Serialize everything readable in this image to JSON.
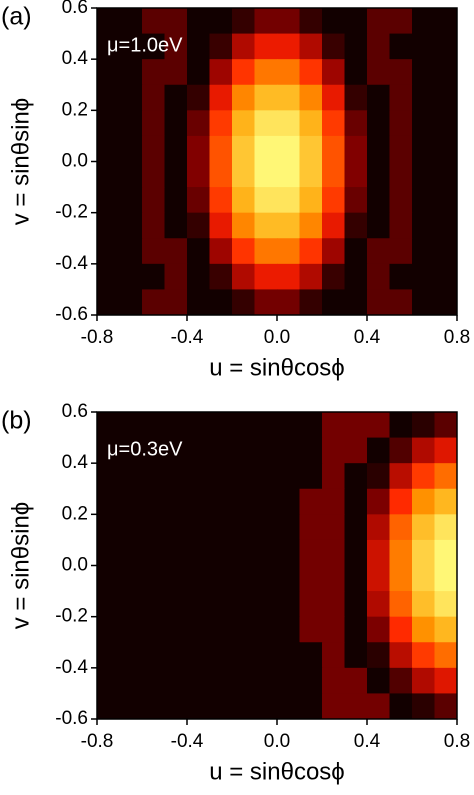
{
  "chart_data": [
    {
      "type": "heatmap",
      "panel_label": "(a)",
      "annotation": "μ=1.0eV",
      "xlabel": "u = sinθcosϕ",
      "ylabel": "v = sinθsinϕ",
      "xlim": [
        -0.8,
        0.8
      ],
      "ylim": [
        -0.6,
        0.6
      ],
      "xticks": [
        -0.8,
        -0.4,
        {
          "value": 0,
          "label": "0.0"
        },
        0.4,
        0.8
      ],
      "yticks": [
        -0.6,
        -0.4,
        -0.2,
        {
          "value": 0,
          "label": "0.0"
        },
        0.2,
        0.4,
        0.6
      ],
      "colormap": [
        "#120000",
        "#8b0000",
        "#ff2000",
        "#ffa000",
        "#ffff80"
      ],
      "x": [
        -0.75,
        -0.65,
        -0.55,
        -0.45,
        -0.35,
        -0.25,
        -0.15,
        -0.05,
        0.05,
        0.15,
        0.25,
        0.35,
        0.45,
        0.55,
        0.65,
        0.75
      ],
      "y": [
        0.55,
        0.45,
        0.35,
        0.25,
        0.15,
        0.05,
        -0.05,
        -0.15,
        -0.25,
        -0.35,
        -0.45,
        -0.55
      ],
      "z": [
        [
          0,
          0,
          0.15,
          0.15,
          0,
          0,
          0.07,
          0.2,
          0.2,
          0.07,
          0,
          0,
          0.15,
          0.15,
          0,
          0
        ],
        [
          0,
          0,
          0,
          0.15,
          0,
          0.08,
          0.33,
          0.46,
          0.46,
          0.33,
          0.08,
          0,
          0.15,
          0,
          0,
          0
        ],
        [
          0,
          0,
          0.15,
          0.15,
          0,
          0.29,
          0.54,
          0.67,
          0.67,
          0.54,
          0.29,
          0,
          0.15,
          0.15,
          0,
          0
        ],
        [
          0,
          0,
          0.15,
          0,
          0.07,
          0.45,
          0.7,
          0.82,
          0.82,
          0.7,
          0.45,
          0.07,
          0,
          0.15,
          0,
          0
        ],
        [
          0,
          0,
          0.15,
          0,
          0.18,
          0.55,
          0.8,
          0.93,
          0.93,
          0.8,
          0.55,
          0.18,
          0,
          0.15,
          0,
          0
        ],
        [
          0,
          0,
          0.15,
          0,
          0.23,
          0.6,
          0.85,
          0.98,
          0.98,
          0.85,
          0.6,
          0.23,
          0,
          0.15,
          0,
          0
        ],
        [
          0,
          0,
          0.15,
          0,
          0.23,
          0.6,
          0.85,
          0.98,
          0.98,
          0.85,
          0.6,
          0.23,
          0,
          0.15,
          0,
          0
        ],
        [
          0,
          0,
          0.15,
          0,
          0.18,
          0.55,
          0.8,
          0.93,
          0.93,
          0.8,
          0.55,
          0.18,
          0,
          0.15,
          0,
          0
        ],
        [
          0,
          0,
          0.15,
          0,
          0.07,
          0.45,
          0.7,
          0.82,
          0.82,
          0.7,
          0.45,
          0.07,
          0,
          0.15,
          0,
          0
        ],
        [
          0,
          0,
          0.15,
          0.15,
          0,
          0.29,
          0.54,
          0.67,
          0.67,
          0.54,
          0.29,
          0,
          0.15,
          0.15,
          0,
          0
        ],
        [
          0,
          0,
          0,
          0.15,
          0,
          0.08,
          0.33,
          0.46,
          0.46,
          0.33,
          0.08,
          0,
          0.15,
          0,
          0,
          0
        ],
        [
          0,
          0,
          0.15,
          0.15,
          0,
          0,
          0.07,
          0.2,
          0.2,
          0.07,
          0,
          0,
          0.15,
          0.15,
          0,
          0
        ]
      ]
    },
    {
      "type": "heatmap",
      "panel_label": "(b)",
      "annotation": "μ=0.3eV",
      "xlabel": "u = sinθcosϕ",
      "ylabel": "v = sinθsinϕ",
      "xlim": [
        -0.8,
        0.8
      ],
      "ylim": [
        -0.6,
        0.6
      ],
      "xticks": [
        -0.8,
        -0.4,
        {
          "value": 0,
          "label": "0.0"
        },
        0.4,
        0.8
      ],
      "yticks": [
        -0.6,
        -0.4,
        -0.2,
        {
          "value": 0,
          "label": "0.0"
        },
        0.2,
        0.4,
        0.6
      ],
      "colormap": [
        "#120000",
        "#8b0000",
        "#ff2000",
        "#ffa000",
        "#ffff80"
      ],
      "x": [
        -0.75,
        -0.65,
        -0.55,
        -0.45,
        -0.35,
        -0.25,
        -0.15,
        -0.05,
        0.05,
        0.15,
        0.25,
        0.35,
        0.45,
        0.55,
        0.65,
        0.75
      ],
      "y": [
        0.55,
        0.45,
        0.35,
        0.25,
        0.15,
        0.05,
        -0.05,
        -0.15,
        -0.25,
        -0.35,
        -0.45,
        -0.55
      ],
      "z": [
        [
          0,
          0,
          0,
          0,
          0,
          0,
          0,
          0,
          0,
          0,
          0.2,
          0.2,
          0.2,
          0,
          0.05,
          0.15
        ],
        [
          0,
          0,
          0,
          0,
          0,
          0,
          0,
          0,
          0,
          0,
          0.2,
          0.2,
          0,
          0.13,
          0.33,
          0.43
        ],
        [
          0,
          0,
          0,
          0,
          0,
          0,
          0,
          0,
          0,
          0,
          0.2,
          0,
          0.05,
          0.35,
          0.55,
          0.65
        ],
        [
          0,
          0,
          0,
          0,
          0,
          0,
          0,
          0,
          0,
          0.2,
          0.2,
          0,
          0.22,
          0.52,
          0.72,
          0.81
        ],
        [
          0,
          0,
          0,
          0,
          0,
          0,
          0,
          0,
          0,
          0.2,
          0.2,
          0,
          0.33,
          0.63,
          0.83,
          0.93
        ],
        [
          0,
          0,
          0,
          0,
          0,
          0,
          0,
          0,
          0,
          0.2,
          0.2,
          0,
          0.39,
          0.68,
          0.88,
          0.98
        ],
        [
          0,
          0,
          0,
          0,
          0,
          0,
          0,
          0,
          0,
          0.2,
          0.2,
          0,
          0.39,
          0.68,
          0.88,
          0.98
        ],
        [
          0,
          0,
          0,
          0,
          0,
          0,
          0,
          0,
          0,
          0.2,
          0.2,
          0,
          0.33,
          0.63,
          0.83,
          0.93
        ],
        [
          0,
          0,
          0,
          0,
          0,
          0,
          0,
          0,
          0,
          0.2,
          0.2,
          0,
          0.22,
          0.52,
          0.72,
          0.81
        ],
        [
          0,
          0,
          0,
          0,
          0,
          0,
          0,
          0,
          0,
          0,
          0.2,
          0,
          0.05,
          0.35,
          0.55,
          0.65
        ],
        [
          0,
          0,
          0,
          0,
          0,
          0,
          0,
          0,
          0,
          0,
          0.2,
          0.2,
          0,
          0.13,
          0.33,
          0.43
        ],
        [
          0,
          0,
          0,
          0,
          0,
          0,
          0,
          0,
          0,
          0,
          0.2,
          0.2,
          0.2,
          0,
          0.05,
          0.15
        ]
      ]
    }
  ]
}
